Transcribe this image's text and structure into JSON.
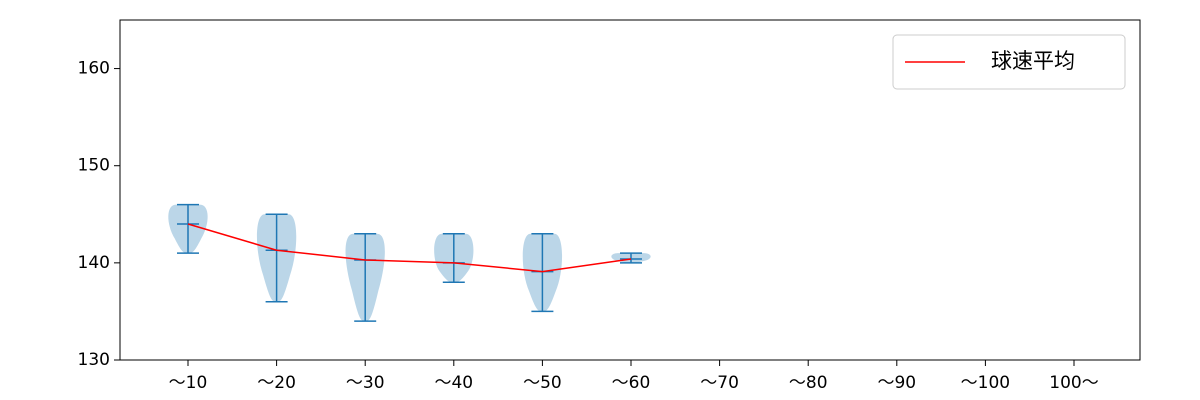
{
  "chart_data": {
    "type": "violin",
    "categories": [
      "～10",
      "～20",
      "～30",
      "～40",
      "～50",
      "～60",
      "～70",
      "～80",
      "～90",
      "～100",
      "100～"
    ],
    "min": [
      141,
      136,
      134,
      138,
      135,
      140,
      null,
      null,
      null,
      null,
      null
    ],
    "max": [
      146,
      145,
      143,
      143,
      143,
      141,
      null,
      null,
      null,
      null,
      null
    ],
    "violin_color": "#1f77b4",
    "series": [
      {
        "name": "球速平均",
        "color": "#ff0000",
        "values": [
          144,
          141.3,
          140.3,
          140,
          139.1,
          140.4,
          null,
          null,
          null,
          null,
          null
        ]
      }
    ],
    "ylim": [
      130,
      165
    ],
    "yticks": [
      130,
      140,
      150,
      160
    ],
    "legend": "upper right"
  }
}
